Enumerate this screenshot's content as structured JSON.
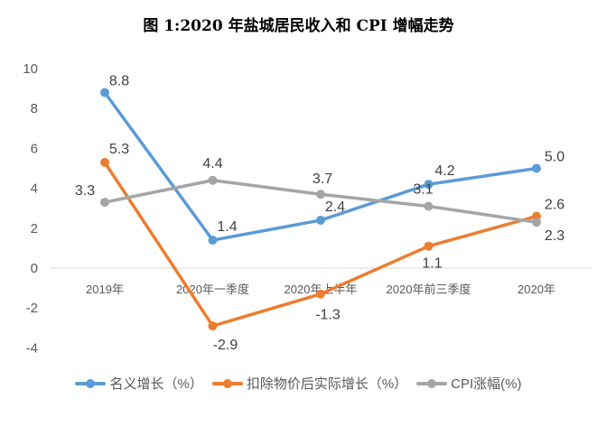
{
  "chart_data": {
    "type": "line",
    "title": "图 1:2020 年盐城居民收入和 CPI 增幅走势",
    "categories": [
      "2019年",
      "2020年一季度",
      "2020年上半年",
      "2020年前三季度",
      "2020年"
    ],
    "ylim": [
      -4,
      10
    ],
    "yticks": [
      10,
      8,
      6,
      4,
      2,
      0,
      -2,
      -4
    ],
    "grid": false,
    "legend": "bottom",
    "series": [
      {
        "name": "名义增长（%）",
        "values": [
          8.8,
          1.4,
          2.4,
          4.2,
          5.0
        ],
        "labels": [
          "8.8",
          "1.4",
          "2.4",
          "4.2",
          "5.0"
        ],
        "color": "#5B9BD5"
      },
      {
        "name": "扣除物价后实际增长（%）",
        "values": [
          5.3,
          -2.9,
          -1.3,
          1.1,
          2.6
        ],
        "labels": [
          "5.3",
          "-2.9",
          "-1.3",
          "1.1",
          "2.6"
        ],
        "color": "#ED7D31"
      },
      {
        "name": "CPI涨幅(%)",
        "values": [
          3.3,
          4.4,
          3.7,
          3.1,
          2.3
        ],
        "labels": [
          "3.3",
          "4.4",
          "3.7",
          "3.1",
          "2.3"
        ],
        "color": "#A5A5A5"
      }
    ]
  }
}
